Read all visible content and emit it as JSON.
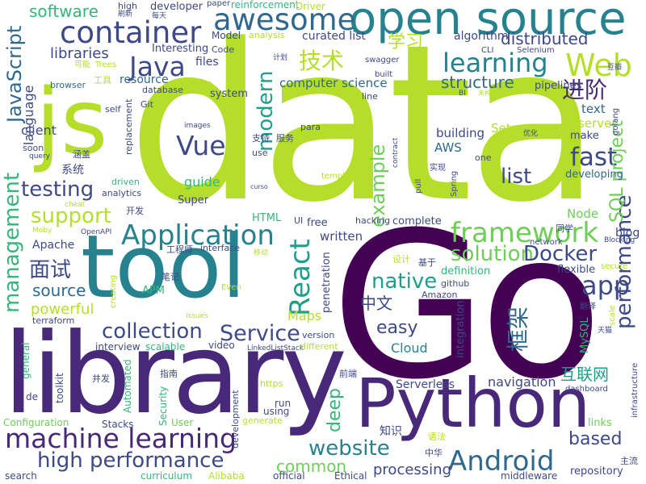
{
  "colors": {
    "yellow_green": "#b5de2b",
    "bright_green": "#6ece58",
    "green": "#35b779",
    "teal": "#1f9e89",
    "dark_teal": "#26828e",
    "blue": "#31688e",
    "indigo": "#3e4989",
    "purple": "#482878",
    "dark_purple": "#440154"
  },
  "words": [
    {
      "text": "data",
      "color": "#b5de2b"
    },
    {
      "text": "Go",
      "color": "#440154"
    },
    {
      "text": "library",
      "color": "#482878"
    },
    {
      "text": "tool",
      "color": "#26828e"
    },
    {
      "text": "Python",
      "color": "#482878"
    },
    {
      "text": "js",
      "color": "#b5de2b"
    },
    {
      "text": "open source",
      "color": "#26828e"
    },
    {
      "text": "machine learning",
      "color": "#482878"
    },
    {
      "text": "container",
      "color": "#3e4989"
    },
    {
      "text": "awesome",
      "color": "#31688e"
    },
    {
      "text": "Application",
      "color": "#26828e"
    },
    {
      "text": "framework",
      "color": "#6ece58"
    },
    {
      "text": "Java",
      "color": "#3e4989"
    },
    {
      "text": "Web",
      "color": "#b5de2b"
    },
    {
      "text": "learning",
      "color": "#26828e"
    },
    {
      "text": "Android",
      "color": "#31688e"
    },
    {
      "text": "React",
      "color": "#1f9e89"
    },
    {
      "text": "Vue",
      "color": "#3e4989"
    },
    {
      "text": "fast",
      "color": "#3e4989"
    },
    {
      "text": "app",
      "color": "#3e4989"
    },
    {
      "text": "high performance",
      "color": "#3e4989"
    },
    {
      "text": "collection",
      "color": "#3e4989"
    },
    {
      "text": "Service",
      "color": "#3e4989"
    },
    {
      "text": "solution",
      "color": "#6ece58"
    },
    {
      "text": "Docker",
      "color": "#3e4989"
    },
    {
      "text": "native",
      "color": "#1f9e89"
    },
    {
      "text": "website",
      "color": "#26828e"
    },
    {
      "text": "testing",
      "color": "#3e4989"
    },
    {
      "text": "support",
      "color": "#b5de2b"
    },
    {
      "text": "JavaScript",
      "color": "#31688e"
    },
    {
      "text": "management",
      "color": "#35b779"
    },
    {
      "text": "performance",
      "color": "#3e4989"
    },
    {
      "text": "modern",
      "color": "#1f9e89"
    },
    {
      "text": "example",
      "color": "#6ece58"
    },
    {
      "text": "SQL project",
      "color": "#6ece58"
    },
    {
      "text": "distributed",
      "color": "#3e4989"
    },
    {
      "text": "技术",
      "color": "#b5de2b"
    },
    {
      "text": "框架",
      "color": "#31688e"
    },
    {
      "text": "面试",
      "color": "#3e4989"
    },
    {
      "text": "进阶",
      "color": "#482878"
    },
    {
      "text": "学习",
      "color": "#b5de2b"
    },
    {
      "text": "easy",
      "color": "#3e4989"
    },
    {
      "text": "deep",
      "color": "#35b779"
    },
    {
      "text": "source",
      "color": "#31688e"
    },
    {
      "text": "powerful",
      "color": "#b5de2b"
    },
    {
      "text": "common",
      "color": "#6ece58"
    },
    {
      "text": "software",
      "color": "#35b779"
    },
    {
      "text": "libraries",
      "color": "#3e4989"
    },
    {
      "text": "structure",
      "color": "#31688e"
    },
    {
      "text": "list",
      "color": "#3e4989"
    },
    {
      "text": "based",
      "color": "#3e4989"
    },
    {
      "text": "processing",
      "color": "#3e4989"
    },
    {
      "text": "中文",
      "color": "#3e4989"
    },
    {
      "text": "互联网",
      "color": "#1f9e89"
    },
    {
      "text": "Maps",
      "color": "#b5de2b"
    },
    {
      "text": "navigation",
      "color": "#3e4989"
    },
    {
      "text": "Cloud",
      "color": "#26828e"
    },
    {
      "text": "guide",
      "color": "#35b779"
    },
    {
      "text": "language",
      "color": "#3e4989"
    },
    {
      "text": "client",
      "color": "#3e4989"
    },
    {
      "text": "computer science",
      "color": "#31688e"
    },
    {
      "text": "resource",
      "color": "#31688e"
    },
    {
      "text": "building",
      "color": "#3e4989"
    },
    {
      "text": "AWS",
      "color": "#31688e"
    },
    {
      "text": "Node",
      "color": "#6ece58"
    },
    {
      "text": "server",
      "color": "#b5de2b"
    },
    {
      "text": "text",
      "color": "#31688e"
    },
    {
      "text": "Sets",
      "color": "#b5de2b"
    },
    {
      "text": "written",
      "color": "#3e4989"
    },
    {
      "text": "blog",
      "color": "#3e4989"
    },
    {
      "text": "Apache",
      "color": "#3e4989"
    },
    {
      "text": "files",
      "color": "#3e4989"
    },
    {
      "text": "Learn",
      "color": "#b5de2b"
    },
    {
      "text": "curated list",
      "color": "#3e4989"
    },
    {
      "text": "algorithm",
      "color": "#3e4989"
    },
    {
      "text": "pipelines",
      "color": "#3e4989"
    },
    {
      "text": "developer",
      "color": "#3e4989"
    },
    {
      "text": "Interesting",
      "color": "#3e4989"
    },
    {
      "text": "developing",
      "color": "#31688e"
    },
    {
      "text": "make",
      "color": "#3e4989"
    },
    {
      "text": "flexible",
      "color": "#3e4989"
    },
    {
      "text": "system",
      "color": "#3e4989"
    },
    {
      "text": "系统",
      "color": "#3e4989"
    },
    {
      "text": "知识",
      "color": "#3e4989"
    },
    {
      "text": "Serverless",
      "color": "#3e4989"
    },
    {
      "text": "integration",
      "color": "#3e4989"
    },
    {
      "text": "penetration",
      "color": "#3e4989"
    },
    {
      "text": "definition",
      "color": "#35b779"
    },
    {
      "text": "complete",
      "color": "#3e4989"
    },
    {
      "text": "repository",
      "color": "#3e4989"
    },
    {
      "text": "middleware",
      "color": "#3e4989"
    },
    {
      "text": "links",
      "color": "#6ece58"
    },
    {
      "text": "MySQL",
      "color": "#35b779"
    },
    {
      "text": "Super",
      "color": "#3e4989"
    },
    {
      "text": "HTML",
      "color": "#35b779"
    },
    {
      "text": "free",
      "color": "#3e4989"
    },
    {
      "text": "APM",
      "color": "#35b779"
    },
    {
      "text": "video",
      "color": "#3e4989"
    },
    {
      "text": "run",
      "color": "#3e4989"
    },
    {
      "text": "using",
      "color": "#3e4989"
    },
    {
      "text": "official",
      "color": "#3e4989"
    },
    {
      "text": "Ethical",
      "color": "#3e4989"
    },
    {
      "text": "Alibaba",
      "color": "#b5de2b"
    },
    {
      "text": "curriculum",
      "color": "#35b779"
    },
    {
      "text": "User",
      "color": "#6ece58"
    },
    {
      "text": "Security",
      "color": "#35b779"
    },
    {
      "text": "search",
      "color": "#3e4989"
    },
    {
      "text": "Configuration",
      "color": "#6ece58"
    },
    {
      "text": "Stacks",
      "color": "#3e4989"
    },
    {
      "text": "Automated",
      "color": "#35b779"
    },
    {
      "text": "general",
      "color": "#35b779"
    },
    {
      "text": "toolkit",
      "color": "#3e4989"
    },
    {
      "text": "de",
      "color": "#3e4989"
    },
    {
      "text": "interview",
      "color": "#3e4989"
    },
    {
      "text": "scalable",
      "color": "#35b779"
    },
    {
      "text": "Model",
      "color": "#3e4989"
    },
    {
      "text": "analysis",
      "color": "#b5de2b"
    },
    {
      "text": "Code",
      "color": "#3e4989"
    },
    {
      "text": "high",
      "color": "#3e4989"
    },
    {
      "text": "paper",
      "color": "#3e4989"
    },
    {
      "text": "reinforcement",
      "color": "#35b779"
    },
    {
      "text": "Driver",
      "color": "#b5de2b"
    },
    {
      "text": "刷新",
      "color": "#3e4989"
    },
    {
      "text": "每天",
      "color": "#3e4989"
    },
    {
      "text": "计划",
      "color": "#3e4989"
    },
    {
      "text": "可能",
      "color": "#b5de2b"
    },
    {
      "text": "Trees",
      "color": "#b5de2b"
    },
    {
      "text": "工具",
      "color": "#b5de2b"
    },
    {
      "text": "browser",
      "color": "#31688e"
    },
    {
      "text": "database",
      "color": "#3e4989"
    },
    {
      "text": "replacement",
      "color": "#3e4989"
    },
    {
      "text": "self",
      "color": "#3e4989"
    },
    {
      "text": "Git",
      "color": "#3e4989"
    },
    {
      "text": "images",
      "color": "#3e4989"
    },
    {
      "text": "soon",
      "color": "#3e4989"
    },
    {
      "text": "query",
      "color": "#3e4989"
    },
    {
      "text": "涵盖",
      "color": "#3e4989"
    },
    {
      "text": "driven",
      "color": "#35b779"
    },
    {
      "text": "analytics",
      "color": "#3e4989"
    },
    {
      "text": "cheat",
      "color": "#b5de2b"
    },
    {
      "text": "开发",
      "color": "#3e4989"
    },
    {
      "text": "OpenAPI",
      "color": "#3e4989"
    },
    {
      "text": "Moby",
      "color": "#b5de2b"
    },
    {
      "text": "工程师",
      "color": "#3e4989"
    },
    {
      "text": "interface",
      "color": "#3e4989"
    },
    {
      "text": "移动",
      "color": "#b5de2b"
    },
    {
      "text": "笔记",
      "color": "#3e4989"
    },
    {
      "text": "Even",
      "color": "#b5de2b"
    },
    {
      "text": "creating",
      "color": "#b5de2b"
    },
    {
      "text": "issues",
      "color": "#b5de2b"
    },
    {
      "text": "terraform",
      "color": "#3e4989"
    },
    {
      "text": "指南",
      "color": "#3e4989"
    },
    {
      "text": "并发",
      "color": "#3e4989"
    },
    {
      "text": "https",
      "color": "#b5de2b"
    },
    {
      "text": "LinkedListStack",
      "color": "#3e4989"
    },
    {
      "text": "different",
      "color": "#b5de2b"
    },
    {
      "text": "version",
      "color": "#3e4989"
    },
    {
      "text": "generate",
      "color": "#b5de2b"
    },
    {
      "text": "development",
      "color": "#3e4989"
    },
    {
      "text": "前端",
      "color": "#3e4989"
    },
    {
      "text": "语法",
      "color": "#b5de2b"
    },
    {
      "text": "中华",
      "color": "#3e4989"
    },
    {
      "text": "Amazon",
      "color": "#3e4989"
    },
    {
      "text": "github",
      "color": "#3e4989"
    },
    {
      "text": "设计",
      "color": "#b5de2b"
    },
    {
      "text": "基于",
      "color": "#3e4989"
    },
    {
      "text": "hacking",
      "color": "#3e4989"
    },
    {
      "text": "UI",
      "color": "#3e4989"
    },
    {
      "text": "network",
      "color": "#3e4989"
    },
    {
      "text": "同学",
      "color": "#3e4989"
    },
    {
      "text": "Blocking",
      "color": "#3e4989"
    },
    {
      "text": "secure",
      "color": "#b5de2b"
    },
    {
      "text": "翻译",
      "color": "#3e4989"
    },
    {
      "text": "scale",
      "color": "#b5de2b"
    },
    {
      "text": "天猫",
      "color": "#3e4989"
    },
    {
      "text": "infrastructure",
      "color": "#3e4989"
    },
    {
      "text": "dashboard",
      "color": "#3e4989"
    },
    {
      "text": "主流",
      "color": "#3e4989"
    },
    {
      "text": "swagger",
      "color": "#3e4989"
    },
    {
      "text": "built",
      "color": "#3e4989"
    },
    {
      "text": "BI",
      "color": "#3e4989"
    },
    {
      "text": "未构配",
      "color": "#b5de2b"
    },
    {
      "text": "line",
      "color": "#3e4989"
    },
    {
      "text": "Selenium",
      "color": "#3e4989"
    },
    {
      "text": "CLI",
      "color": "#3e4989"
    },
    {
      "text": "豆瓣",
      "color": "#3e4989"
    },
    {
      "text": "golang",
      "color": "#3e4989"
    },
    {
      "text": "优化",
      "color": "#3e4989"
    },
    {
      "text": "one",
      "color": "#3e4989"
    },
    {
      "text": "实现",
      "color": "#3e4989"
    },
    {
      "text": "pull",
      "color": "#3e4989"
    },
    {
      "text": "Spring",
      "color": "#3e4989"
    },
    {
      "text": "contract",
      "color": "#3e4989"
    },
    {
      "text": "template",
      "color": "#b5de2b"
    },
    {
      "text": "curso",
      "color": "#3e4989"
    },
    {
      "text": "use",
      "color": "#3e4989"
    },
    {
      "text": "支持",
      "color": "#3e4989"
    },
    {
      "text": "服务",
      "color": "#3e4989"
    },
    {
      "text": "para",
      "color": "#3e4989"
    }
  ]
}
